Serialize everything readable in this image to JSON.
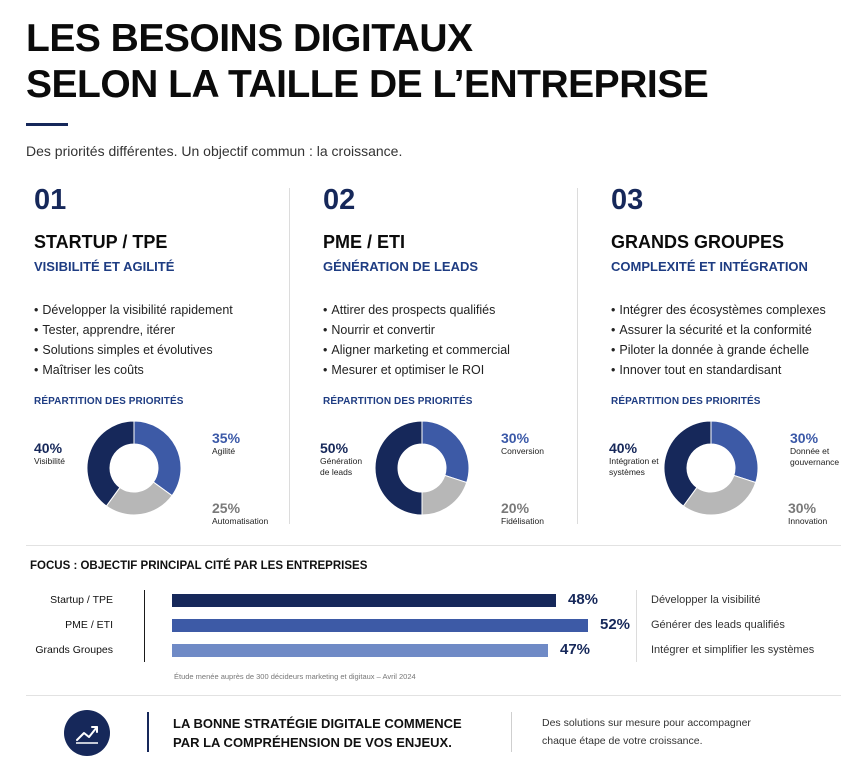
{
  "header": {
    "title_line1": "LES BESOINS DIGITAUX",
    "title_line2": "SELON LA TAILLE DE L’ENTREPRISE",
    "subtitle": "Des priorités différentes. Un objectif commun : la croissance."
  },
  "columns": [
    {
      "number": "01",
      "title": "STARTUP / TPE",
      "subtitle": "VISIBILITÉ ET AGILITÉ",
      "bullets": [
        "Développer la visibilité rapidement",
        "Tester, apprendre, itérer",
        "Solutions simples et évolutives",
        "Maîtriser les coûts"
      ],
      "breakdown_title": "RÉPARTITION DES PRIORITÉS",
      "segments": [
        {
          "pct": "40%",
          "label": "Visibilité",
          "value": 40,
          "color": "#16285a"
        },
        {
          "pct": "35%",
          "label": "Agilité",
          "value": 35,
          "color": "#3d5aa6"
        },
        {
          "pct": "25%",
          "label": "Automatisation",
          "value": 25,
          "color": "#b7b7b7"
        }
      ]
    },
    {
      "number": "02",
      "title": "PME / ETI",
      "subtitle": "GÉNÉRATION DE LEADS",
      "bullets": [
        "Attirer des prospects qualifiés",
        "Nourrir et convertir",
        "Aligner marketing et commercial",
        "Mesurer et optimiser le ROI"
      ],
      "breakdown_title": "RÉPARTITION DES PRIORITÉS",
      "segments": [
        {
          "pct": "50%",
          "label": "Génération de leads",
          "value": 50,
          "color": "#16285a"
        },
        {
          "pct": "30%",
          "label": "Conversion",
          "value": 30,
          "color": "#3d5aa6"
        },
        {
          "pct": "20%",
          "label": "Fidélisation",
          "value": 20,
          "color": "#b7b7b7"
        }
      ]
    },
    {
      "number": "03",
      "title": "GRANDS GROUPES",
      "subtitle": "COMPLEXITÉ ET INTÉGRATION",
      "bullets": [
        "Intégrer des écosystèmes complexes",
        "Assurer la sécurité et la conformité",
        "Piloter la donnée à grande échelle",
        "Innover tout en standardisant"
      ],
      "breakdown_title": "RÉPARTITION DES PRIORITÉS",
      "segments": [
        {
          "pct": "40%",
          "label": "Intégration et systèmes",
          "value": 40,
          "color": "#16285a"
        },
        {
          "pct": "30%",
          "label": "Donnée et gouvernance",
          "value": 30,
          "color": "#3d5aa6"
        },
        {
          "pct": "30%",
          "label": "Innovation",
          "value": 30,
          "color": "#b7b7b7"
        }
      ]
    }
  ],
  "focus": {
    "title": "FOCUS : OBJECTIF PRINCIPAL CITÉ PAR LES ENTREPRISES",
    "rows": [
      {
        "label": "Startup / TPE",
        "value": 48,
        "value_label": "48%",
        "description": "Développer la visibilité",
        "color": "#16285a"
      },
      {
        "label": "PME / ETI",
        "value": 52,
        "value_label": "52%",
        "description": "Générer des leads qualifiés",
        "color": "#3d5aa6"
      },
      {
        "label": "Grands Groupes",
        "value": 47,
        "value_label": "47%",
        "description": "Intégrer et simplifier les systèmes",
        "color": "#6f8ac6"
      }
    ],
    "note": "Étude menée auprès de 300 décideurs marketing et digitaux – Avril 2024"
  },
  "footer": {
    "icon": "trend-up-icon",
    "main_line1": "LA BONNE STRATÉGIE DIGITALE COMMENCE",
    "main_line2": "PAR LA COMPRÉHENSION DE VOS ENJEUX.",
    "side_line1": "Des solutions sur mesure pour accompagner",
    "side_line2": "chaque étape de votre croissance."
  }
}
